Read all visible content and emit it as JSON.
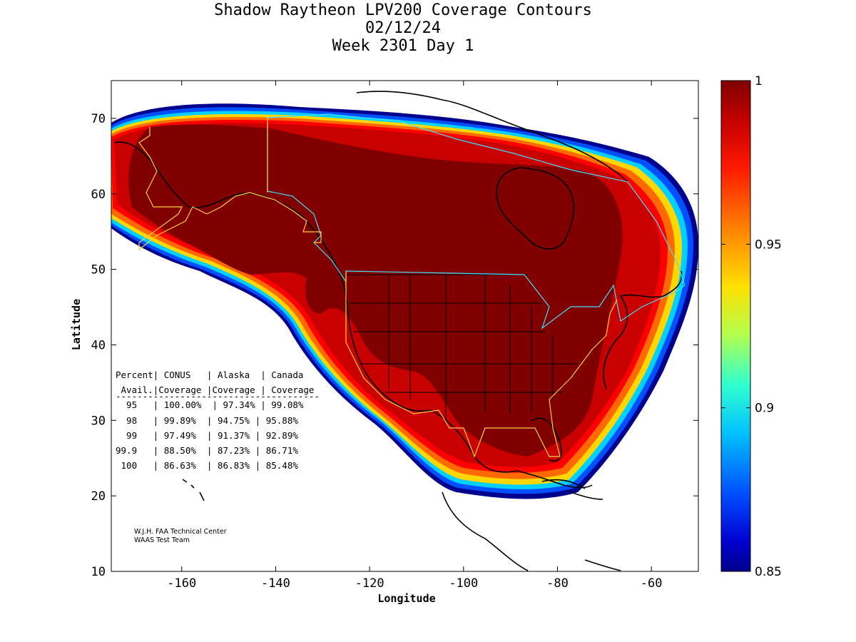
{
  "title": {
    "line1": "Shadow Raytheon LPV200 Coverage Contours",
    "line2": "02/12/24",
    "line3": "Week 2301 Day 1"
  },
  "axes": {
    "xlabel": "Longitude",
    "ylabel": "Latitude",
    "xticks": [
      "-160",
      "-140",
      "-120",
      "-100",
      "-80",
      "-60"
    ],
    "xtick_values": [
      -160,
      -140,
      -120,
      -100,
      -80,
      -60
    ],
    "yticks": [
      "10",
      "20",
      "30",
      "40",
      "50",
      "60",
      "70"
    ],
    "ytick_values": [
      10,
      20,
      30,
      40,
      50,
      60,
      70
    ],
    "xlim": [
      -175,
      -50
    ],
    "ylim": [
      10,
      75
    ]
  },
  "colorbar": {
    "ticks": [
      "1",
      "0.95",
      "0.9",
      "0.85"
    ],
    "tick_values": [
      1,
      0.95,
      0.9,
      0.85
    ],
    "range": [
      0.85,
      1
    ]
  },
  "table": {
    "header1": "Percent| CONUS   | Alaska  | Canada",
    "header2": " Avail.|Coverage |Coverage | Coverage",
    "separator": "--------------------------------------",
    "rows": [
      "  95   | 100.00%  | 97.34% | 99.08%",
      "  98   | 99.89%  | 94.75% | 95.88%",
      "  99   | 97.49%  | 91.37% | 92.89%",
      "99.9   | 88.50%  | 87.23% | 86.71%",
      " 100   | 86.63%  | 86.83% | 85.48%"
    ]
  },
  "credit": {
    "line1": "W.J.H. FAA Technical Center",
    "line2": "WAAS Test Team"
  },
  "colors": {
    "core": "#800000",
    "red": "#c80000",
    "bright_red": "#ff0000",
    "orange": "#ff6a00",
    "yellow": "#ffd700",
    "cyan": "#00d0ff",
    "blue": "#0040ff",
    "navy": "#00008f"
  }
}
